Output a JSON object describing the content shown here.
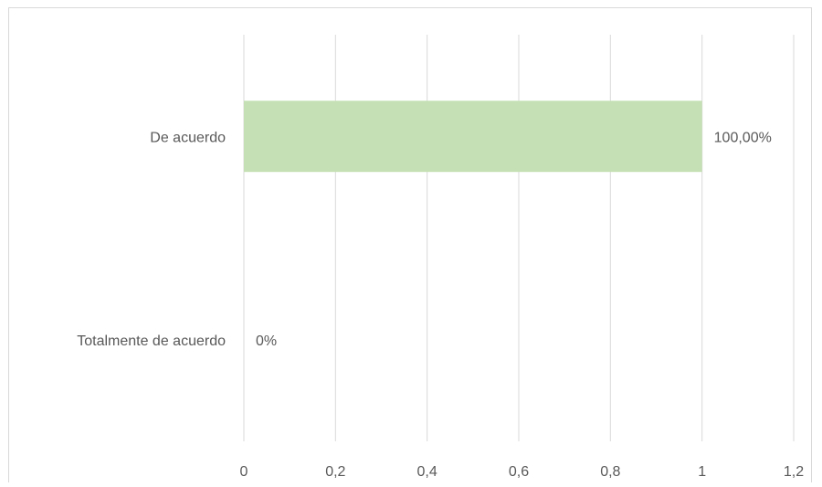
{
  "chart_data": {
    "type": "bar",
    "orientation": "horizontal",
    "title": "",
    "xlabel": "",
    "ylabel": "",
    "categories": [
      "De acuerdo",
      "Totalmente de acuerdo"
    ],
    "values": [
      1,
      0
    ],
    "data_labels": [
      "100,00%",
      "0%"
    ],
    "xlim": [
      0,
      1.2
    ],
    "x_ticks": [
      0,
      0.2,
      0.4,
      0.6,
      0.8,
      1,
      1.2
    ],
    "x_tick_labels": [
      "0",
      "0,2",
      "0,4",
      "0,6",
      "0,8",
      "1",
      "1,2"
    ],
    "grid": "vertical",
    "legend": "none",
    "bar_color": "#c5e0b4",
    "gridline_color": "#d9d9d9",
    "text_color": "#595959"
  }
}
